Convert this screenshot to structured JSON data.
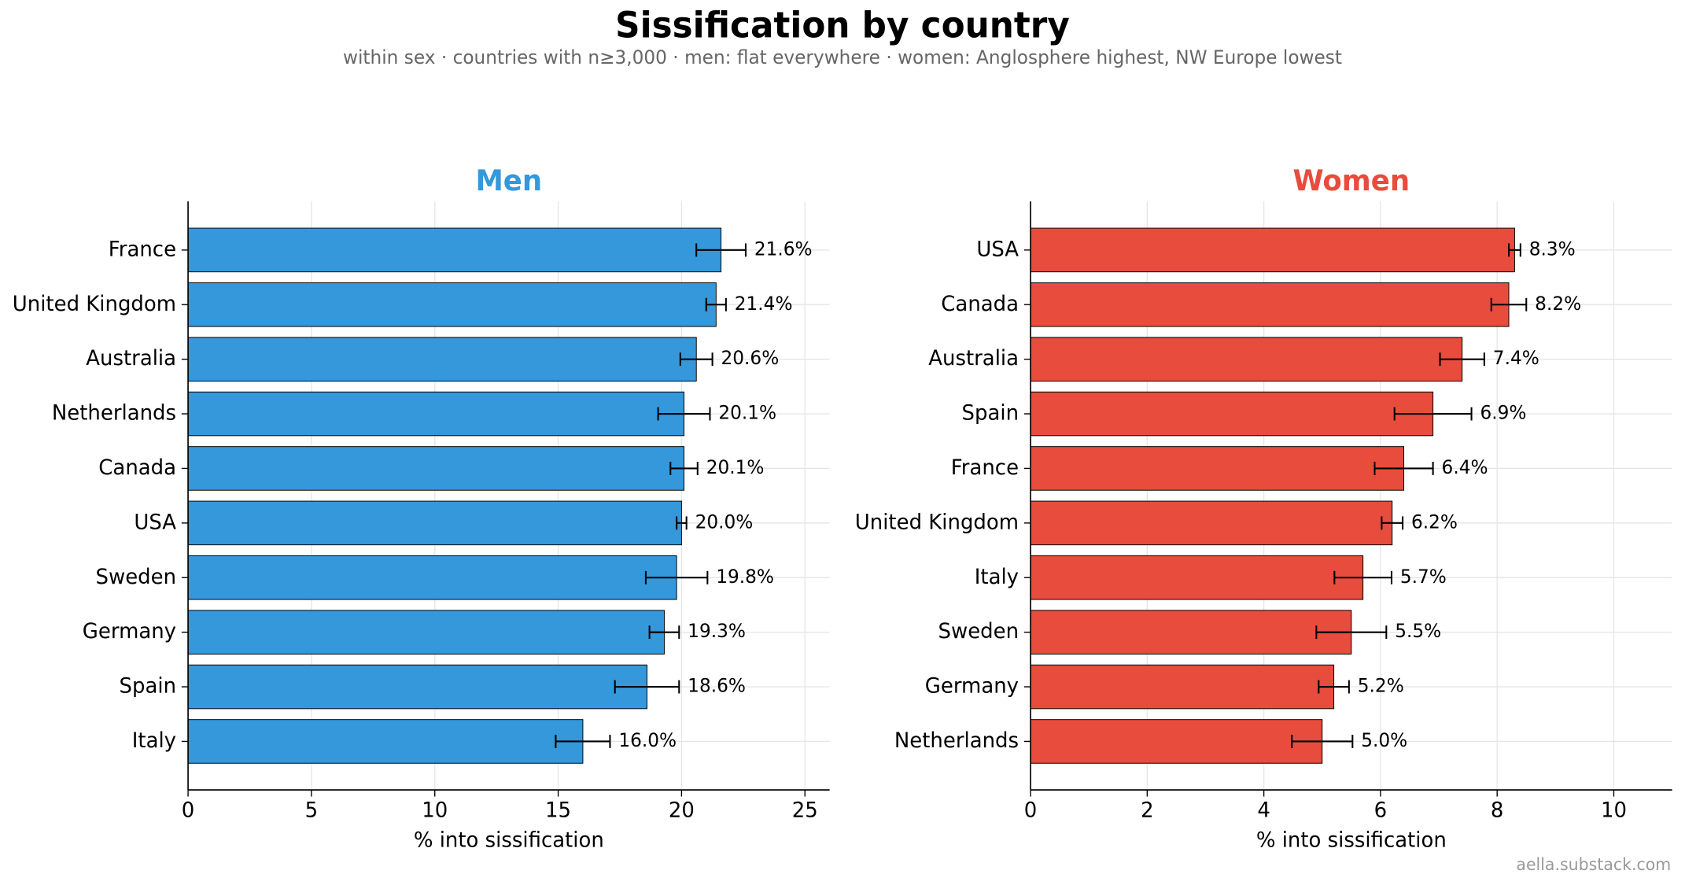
{
  "title": "Sissification by country",
  "subtitle": "within sex · countries with n≥3,000 · men: flat everywhere · women: Anglosphere highest, NW Europe lowest",
  "credit": "aella.substack.com",
  "chart_data": [
    {
      "type": "bar",
      "title": "Men",
      "color": "#3498db",
      "xlabel": "% into sissification",
      "categories": [
        "France",
        "United Kingdom",
        "Australia",
        "Netherlands",
        "Canada",
        "USA",
        "Sweden",
        "Germany",
        "Spain",
        "Italy"
      ],
      "values": [
        21.6,
        21.4,
        20.6,
        20.1,
        20.1,
        20.0,
        19.8,
        19.3,
        18.6,
        16.0
      ],
      "errors": [
        1.0,
        0.4,
        0.65,
        1.05,
        0.55,
        0.2,
        1.25,
        0.6,
        1.3,
        1.1
      ],
      "value_labels": [
        "21.6%",
        "21.4%",
        "20.6%",
        "20.1%",
        "20.1%",
        "20.0%",
        "19.8%",
        "19.3%",
        "18.6%",
        "16.0%"
      ],
      "xlim": [
        0,
        26
      ],
      "xticks": [
        0,
        5,
        10,
        15,
        20,
        25
      ],
      "grid": true
    },
    {
      "type": "bar",
      "title": "Women",
      "color": "#e74c3c",
      "xlabel": "% into sissification",
      "categories": [
        "USA",
        "Canada",
        "Australia",
        "Spain",
        "France",
        "United Kingdom",
        "Italy",
        "Sweden",
        "Germany",
        "Netherlands"
      ],
      "values": [
        8.3,
        8.2,
        7.4,
        6.9,
        6.4,
        6.2,
        5.7,
        5.5,
        5.2,
        5.0
      ],
      "errors": [
        0.1,
        0.3,
        0.38,
        0.66,
        0.5,
        0.18,
        0.49,
        0.6,
        0.26,
        0.52
      ],
      "value_labels": [
        "8.3%",
        "8.2%",
        "7.4%",
        "6.9%",
        "6.4%",
        "6.2%",
        "5.7%",
        "5.5%",
        "5.2%",
        "5.0%"
      ],
      "xlim": [
        0,
        11
      ],
      "xticks": [
        0,
        2,
        4,
        6,
        8,
        10
      ],
      "grid": true
    }
  ]
}
